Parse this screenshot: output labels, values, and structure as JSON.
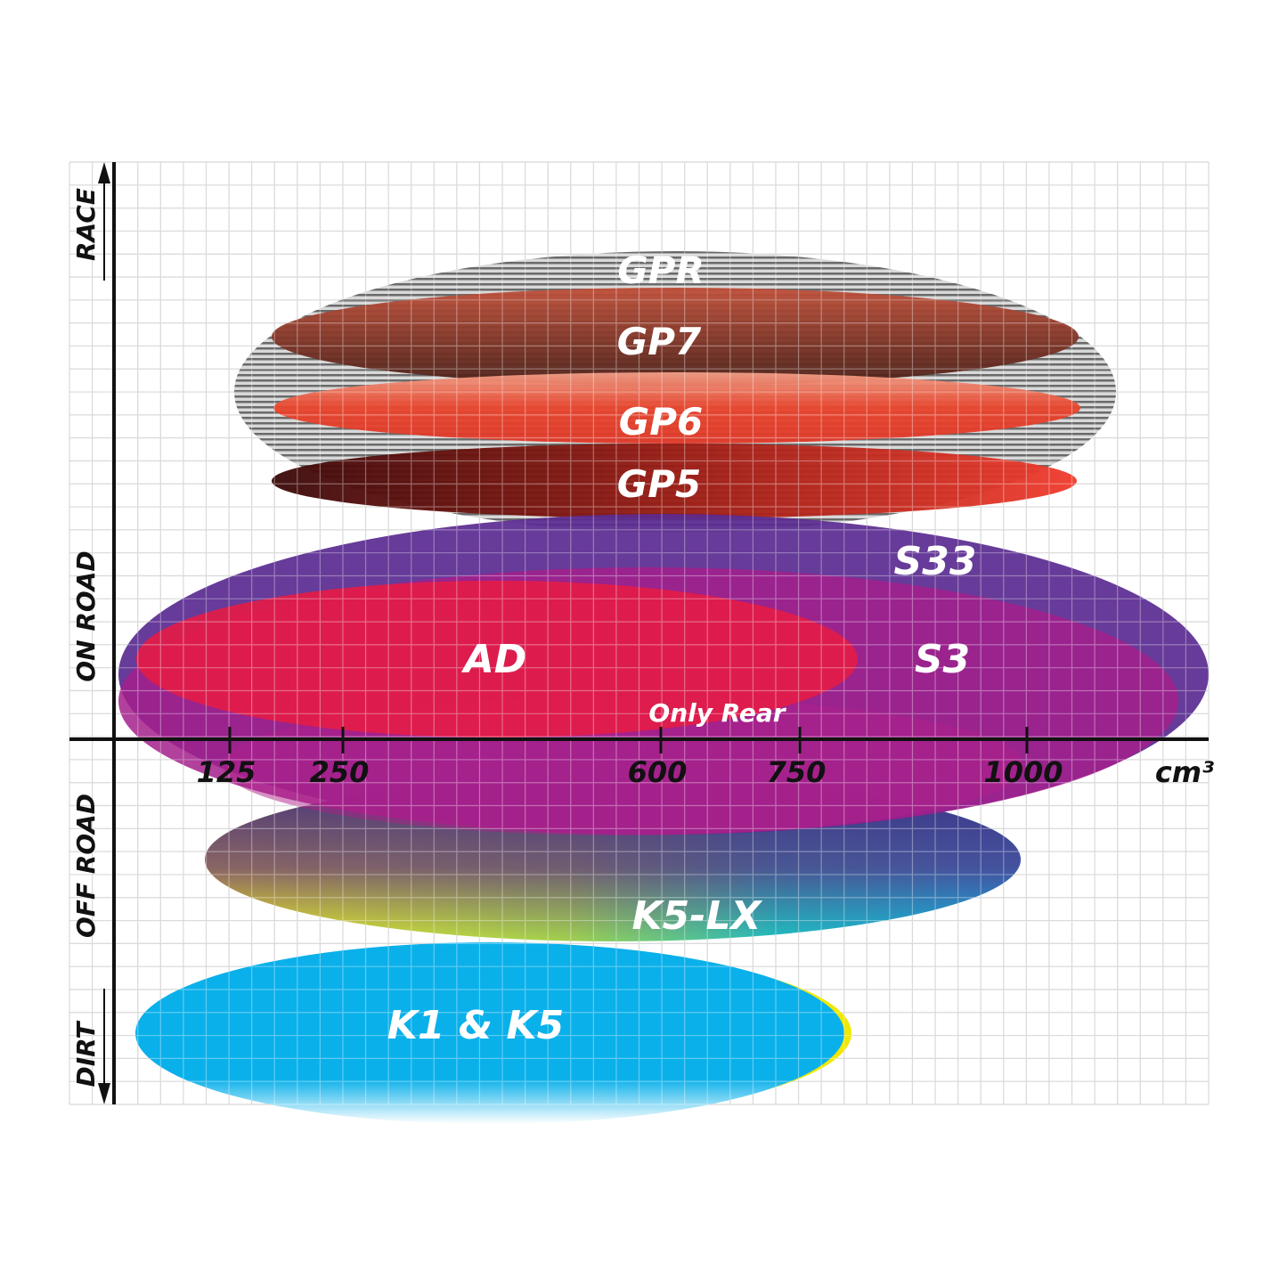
{
  "chart_data": {
    "type": "ellipse-positioning",
    "xlabel": "cm³",
    "x_ticks": [
      125,
      250,
      600,
      750,
      1000
    ],
    "y_categories": [
      "RACE",
      "ON ROAD",
      "OFF ROAD",
      "DIRT"
    ],
    "grid": true,
    "products": [
      {
        "name": "GPR",
        "color": "#9a9a9a",
        "x_range": [
          0,
          1100
        ],
        "zone": "race"
      },
      {
        "name": "GP7",
        "color": "#8a3a28",
        "x_range": [
          150,
          1050
        ],
        "zone": "race"
      },
      {
        "name": "GP6",
        "color": "#e8442c",
        "x_range": [
          150,
          1050
        ],
        "zone": "race"
      },
      {
        "name": "GP5",
        "color": "#a81c18",
        "x_range": [
          150,
          1050
        ],
        "zone": "race / on road"
      },
      {
        "name": "S33",
        "color": "#5a2a90",
        "x_range": [
          0,
          1200
        ],
        "zone": "on road"
      },
      {
        "name": "S3",
        "color": "#a3208c",
        "x_range": [
          0,
          1200
        ],
        "zone": "on road"
      },
      {
        "name": "AD",
        "color": "#e31c48",
        "x_range": [
          0,
          800
        ],
        "zone": "on road"
      },
      {
        "name": "Only Rear",
        "color": "#b0208a",
        "x_range": [
          150,
          1000
        ],
        "zone": "on road / off road"
      },
      {
        "name": "K5-LX",
        "color": "#20b8d8",
        "x_range": [
          100,
          1000
        ],
        "zone": "off road"
      },
      {
        "name": "K1 & K5",
        "color": "#0ab0ea",
        "x_range": [
          0,
          800
        ],
        "zone": "dirt"
      }
    ]
  }
}
